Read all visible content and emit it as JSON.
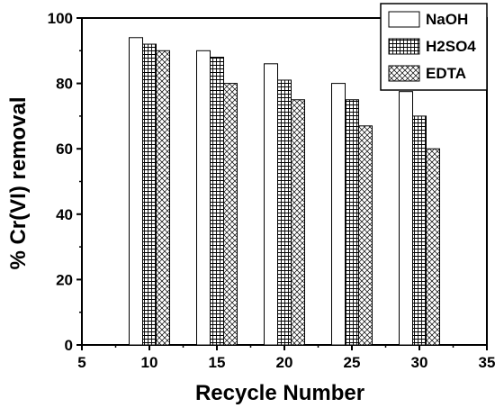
{
  "chart_data": {
    "type": "bar",
    "xlabel": "Recycle Number",
    "ylabel": "% Cr(VI) removal",
    "xlim": [
      5,
      35
    ],
    "ylim": [
      0,
      100
    ],
    "xticks": [
      "5",
      "10",
      "15",
      "20",
      "25",
      "30",
      "35"
    ],
    "yticks": [
      "0",
      "20",
      "40",
      "60",
      "80",
      "100"
    ],
    "x": [
      10,
      15,
      20,
      25,
      30
    ],
    "series": [
      {
        "name": "NaOH",
        "values": [
          94,
          90,
          86,
          80,
          77.5
        ],
        "pattern": "empty"
      },
      {
        "name": "H2SO4",
        "values": [
          92,
          88,
          81,
          75,
          70
        ],
        "pattern": "grid"
      },
      {
        "name": "EDTA",
        "values": [
          90,
          80,
          75,
          67,
          60
        ],
        "pattern": "crosshatch"
      }
    ],
    "legend_placement": "top-right",
    "grid": false
  }
}
